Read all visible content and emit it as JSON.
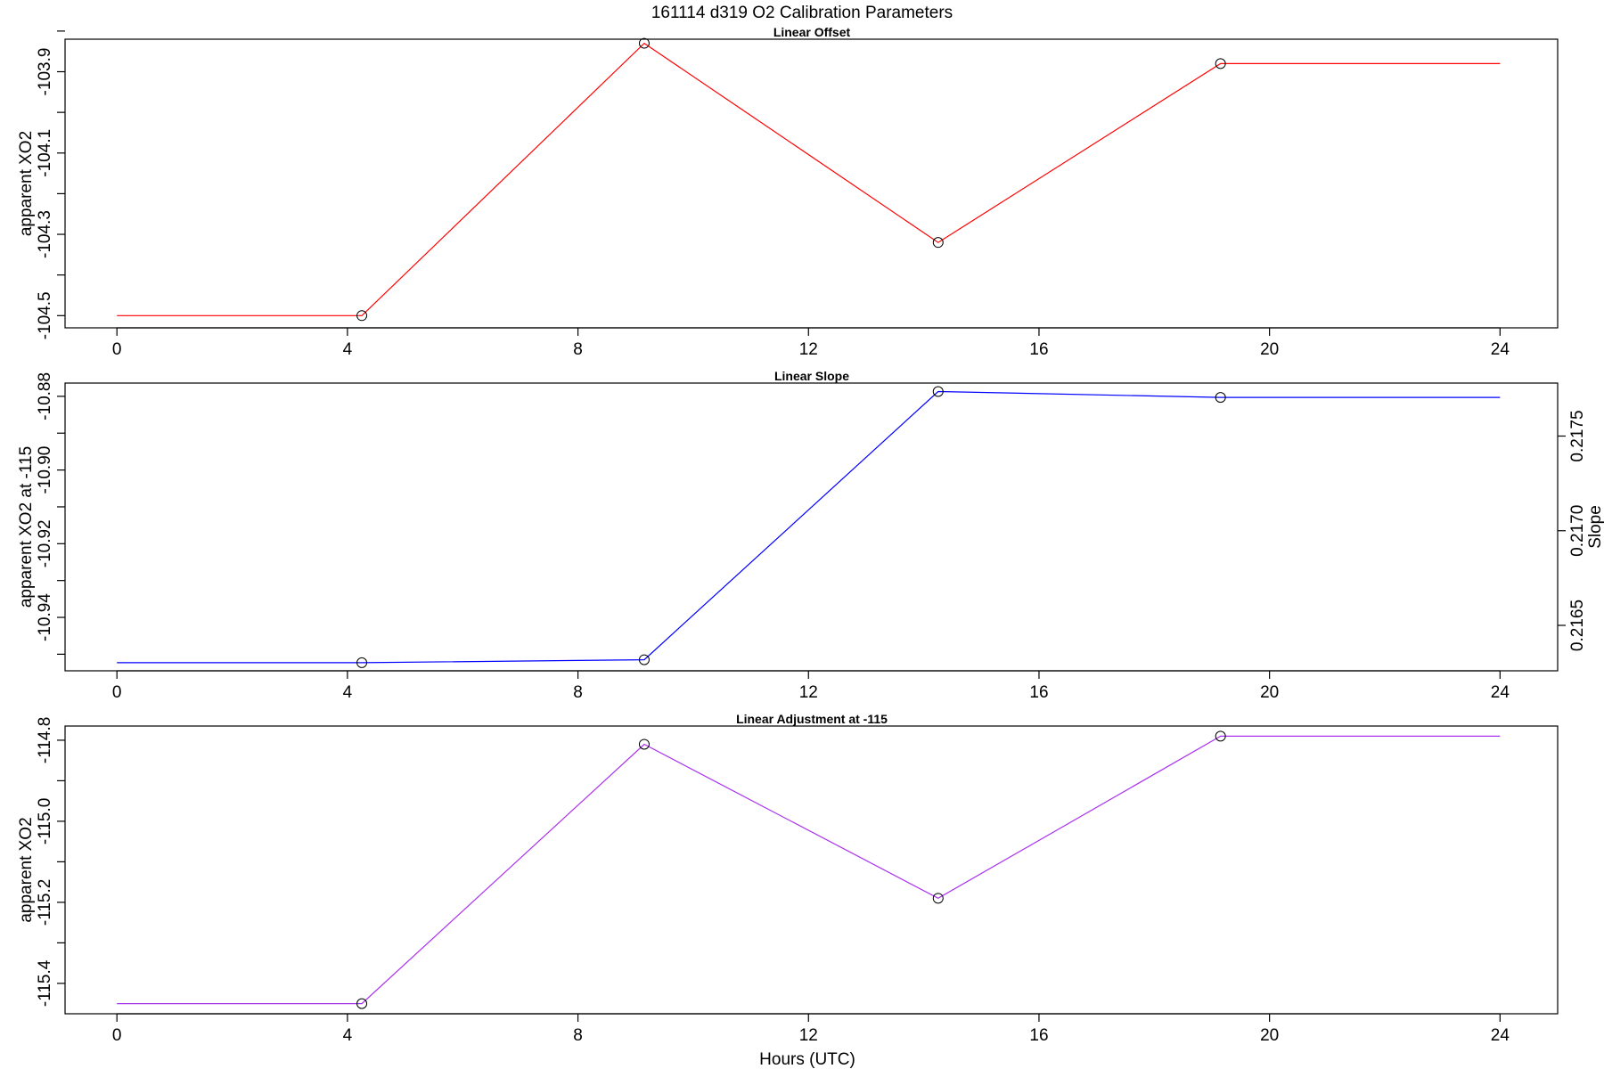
{
  "title": "161114   d319   O2 Calibration Parameters",
  "xlabel": "Hours (UTC)",
  "chart_data": [
    {
      "type": "line",
      "title": "Linear Offset",
      "ylabel": "apparent XO2",
      "color": "#ff0000",
      "x": [
        0,
        4.25,
        9.15,
        14.25,
        19.15,
        24
      ],
      "values": [
        -104.5,
        -104.5,
        -103.83,
        -104.32,
        -103.88,
        -103.88
      ],
      "markers_x": [
        4.25,
        9.15,
        14.25,
        19.15
      ],
      "markers_y": [
        -104.5,
        -103.83,
        -104.32,
        -103.88
      ],
      "xlim": [
        -0.9,
        25
      ],
      "ylim": [
        -104.53,
        -103.82
      ],
      "xticks": [
        0,
        4,
        8,
        12,
        16,
        20,
        24
      ],
      "xtick_labels": [
        "0",
        "4",
        "8",
        "12",
        "16",
        "20",
        "24"
      ],
      "yticks": [
        -104.5,
        -104.3,
        -104.1,
        -103.9
      ],
      "ytick_labels": [
        "-104.5",
        "-104.3",
        "-104.1",
        "-103.9"
      ],
      "yminor": [
        -104.4,
        -104.2,
        -104.0,
        -103.8
      ]
    },
    {
      "type": "line",
      "title": "Linear Slope",
      "ylabel": "apparent XO2 at -115",
      "y2label": "Slope",
      "color": "#0000ff",
      "x": [
        0,
        4.25,
        9.15,
        14.25,
        19.15,
        24
      ],
      "values": [
        -10.9523,
        -10.9523,
        -10.9515,
        -10.8787,
        -10.8803,
        -10.8803
      ],
      "markers_x": [
        4.25,
        9.15,
        14.25,
        19.15
      ],
      "markers_y": [
        -10.9523,
        -10.9515,
        -10.8787,
        -10.8803
      ],
      "xlim": [
        -0.9,
        25
      ],
      "ylim": [
        -10.9545,
        -10.8764
      ],
      "xticks": [
        0,
        4,
        8,
        12,
        16,
        20,
        24
      ],
      "xtick_labels": [
        "0",
        "4",
        "8",
        "12",
        "16",
        "20",
        "24"
      ],
      "yticks": [
        -10.94,
        -10.92,
        -10.9,
        -10.88
      ],
      "ytick_labels": [
        "-10.94",
        "-10.92",
        "-10.90",
        "-10.88"
      ],
      "yminor": [
        -10.95,
        -10.93,
        -10.91,
        -10.89
      ],
      "y2lim": [
        0.21626,
        0.21778
      ],
      "y2ticks": [
        0.2165,
        0.217,
        0.2175
      ],
      "y2tick_labels": [
        "0.2165",
        "0.2170",
        "0.2175"
      ]
    },
    {
      "type": "line",
      "title": "Linear Adjustment at -115",
      "ylabel": "apparent XO2",
      "color": "#aa33ee",
      "x": [
        0,
        4.25,
        9.15,
        14.25,
        19.15,
        24
      ],
      "values": [
        -115.45,
        -115.45,
        -114.81,
        -115.19,
        -114.79,
        -114.79
      ],
      "markers_x": [
        4.25,
        9.15,
        14.25,
        19.15
      ],
      "markers_y": [
        -115.45,
        -114.81,
        -115.19,
        -114.79
      ],
      "xlim": [
        -0.9,
        25
      ],
      "ylim": [
        -115.475,
        -114.765
      ],
      "xticks": [
        0,
        4,
        8,
        12,
        16,
        20,
        24
      ],
      "xtick_labels": [
        "0",
        "4",
        "8",
        "12",
        "16",
        "20",
        "24"
      ],
      "yticks": [
        -115.4,
        -115.2,
        -115.0,
        -114.8
      ],
      "ytick_labels": [
        "-115.4",
        "-115.2",
        "-115.0",
        "-114.8"
      ],
      "yminor": [
        -115.3,
        -115.1,
        -114.9
      ]
    }
  ]
}
